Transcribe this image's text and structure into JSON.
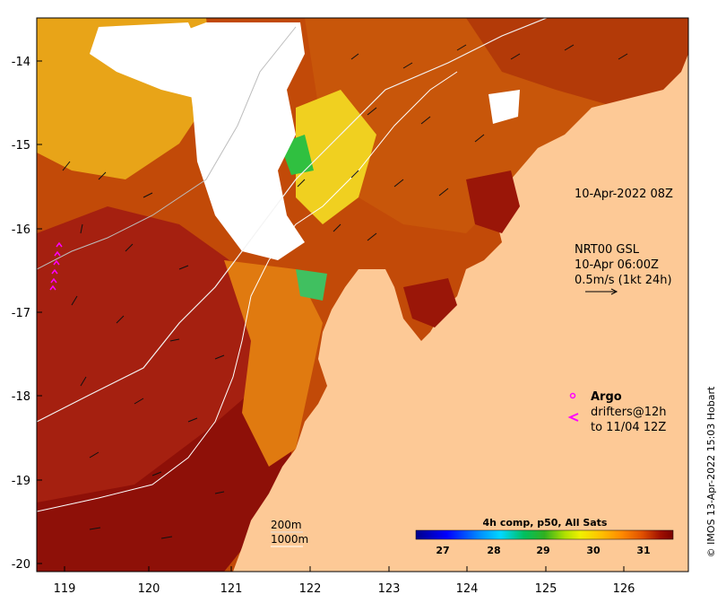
{
  "map": {
    "timestamp": "10-Apr-2022 08Z",
    "currents": {
      "line1": "NRT00 GSL",
      "line2": "10-Apr 06:00Z",
      "line3": "0.5m/s (1kt 24h)"
    },
    "argo": {
      "label": "Argo",
      "drifters_line1": "drifters@12h",
      "drifters_line2": "to 11/04 12Z"
    },
    "contours": [
      "200m",
      "1000m"
    ],
    "colorbar": {
      "title": "4h comp, p50, All Sats",
      "ticks": [
        "27",
        "28",
        "29",
        "30",
        "31"
      ],
      "range": [
        26.5,
        31.7
      ],
      "colors": [
        "#00008b",
        "#0000ff",
        "#0080ff",
        "#00d8ff",
        "#00c060",
        "#00b030",
        "#a0e000",
        "#e8f000",
        "#ffd000",
        "#ff9a00",
        "#ff6a00",
        "#d84000",
        "#a01000",
        "#7a0000"
      ]
    },
    "credit": "© IMOS 13-Apr-2022 15:03 Hobart",
    "x_ticks": [
      "119",
      "120",
      "121",
      "122",
      "123",
      "124",
      "125",
      "126"
    ],
    "y_ticks": [
      "-14",
      "-15",
      "-16",
      "-17",
      "-18",
      "-19",
      "-20"
    ],
    "colors": {
      "land": "#fdc996",
      "sst_warm": "#9a1608",
      "sst_mid": "#d96a0a",
      "sst_cool": "#f0c020",
      "cloud": "#ffffff",
      "argo": "#ff00ff"
    }
  }
}
